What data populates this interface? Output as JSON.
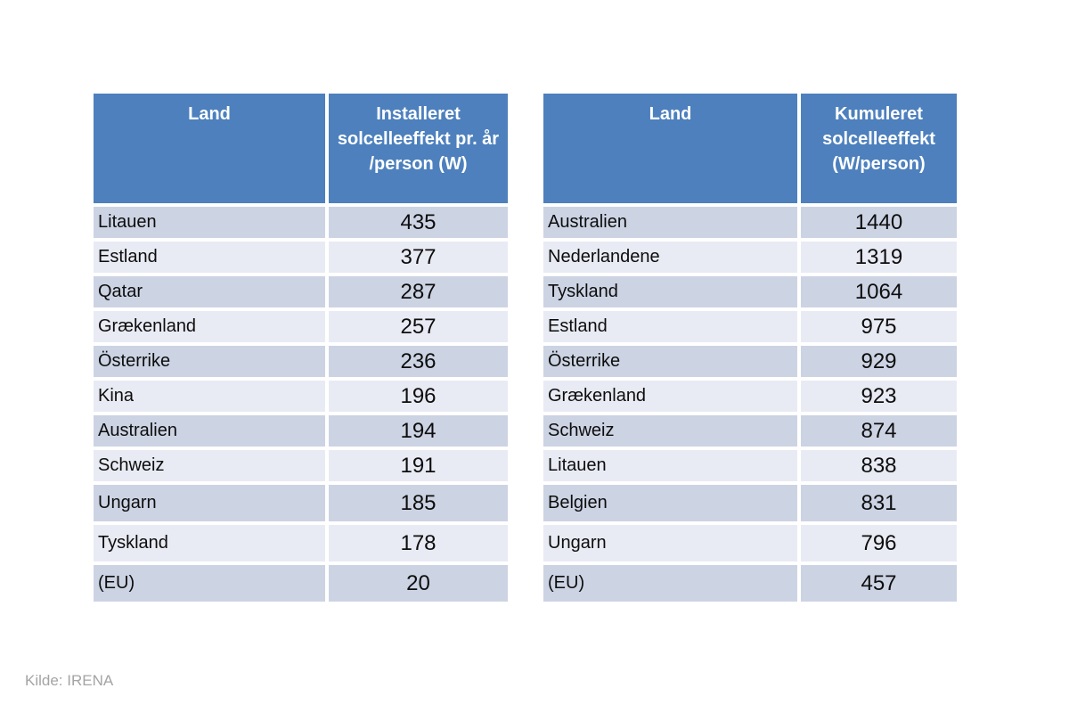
{
  "source_note": "Kilde: IRENA",
  "colors": {
    "header_bg": "#4d80bd",
    "header_text": "#ffffff",
    "row_dark": "#ccd3e3",
    "row_light": "#e9ebf4",
    "source_text": "#a4a4a4"
  },
  "tables": [
    {
      "name": "installeret-solcelleeffekt-pr-aar",
      "columns": [
        "Land",
        "Installeret solcelleeffekt pr. år /person (W)"
      ],
      "rows": [
        {
          "country": "Litauen",
          "value": "435"
        },
        {
          "country": "Estland",
          "value": "377"
        },
        {
          "country": "Qatar",
          "value": "287"
        },
        {
          "country": "Grækenland",
          "value": "257"
        },
        {
          "country": "Österrike",
          "value": "236"
        },
        {
          "country": "Kina",
          "value": "196"
        },
        {
          "country": "Australien",
          "value": "194"
        },
        {
          "country": "Schweiz",
          "value": "191"
        },
        {
          "country": "Ungarn",
          "value": "185"
        },
        {
          "country": "Tyskland",
          "value": "178"
        },
        {
          "country": "(EU)",
          "value": "20"
        }
      ]
    },
    {
      "name": "kumuleret-solcelleeffekt",
      "columns": [
        "Land",
        "Kumuleret solcelleeffekt (W/person)"
      ],
      "rows": [
        {
          "country": "Australien",
          "value": "1440"
        },
        {
          "country": "Nederlandene",
          "value": "1319"
        },
        {
          "country": "Tyskland",
          "value": "1064"
        },
        {
          "country": "Estland",
          "value": "975"
        },
        {
          "country": "Österrike",
          "value": "929"
        },
        {
          "country": "Grækenland",
          "value": "923"
        },
        {
          "country": "Schweiz",
          "value": "874"
        },
        {
          "country": "Litauen",
          "value": "838"
        },
        {
          "country": "Belgien",
          "value": "831"
        },
        {
          "country": "Ungarn",
          "value": "796"
        },
        {
          "country": "(EU)",
          "value": "457"
        }
      ]
    }
  ],
  "chart_data": [
    {
      "type": "table",
      "title": "Installeret solcelleeffekt pr. år /person (W)",
      "columns": [
        "Land",
        "Installeret solcelleeffekt pr. år /person (W)"
      ],
      "rows": [
        [
          "Litauen",
          435
        ],
        [
          "Estland",
          377
        ],
        [
          "Qatar",
          287
        ],
        [
          "Grækenland",
          257
        ],
        [
          "Österrike",
          236
        ],
        [
          "Kina",
          196
        ],
        [
          "Australien",
          194
        ],
        [
          "Schweiz",
          191
        ],
        [
          "Ungarn",
          185
        ],
        [
          "Tyskland",
          178
        ],
        [
          "(EU)",
          20
        ]
      ],
      "source": "Kilde: IRENA"
    },
    {
      "type": "table",
      "title": "Kumuleret solcelleeffekt (W/person)",
      "columns": [
        "Land",
        "Kumuleret solcelleeffekt (W/person)"
      ],
      "rows": [
        [
          "Australien",
          1440
        ],
        [
          "Nederlandene",
          1319
        ],
        [
          "Tyskland",
          1064
        ],
        [
          "Estland",
          975
        ],
        [
          "Österrike",
          929
        ],
        [
          "Grækenland",
          923
        ],
        [
          "Schweiz",
          874
        ],
        [
          "Litauen",
          838
        ],
        [
          "Belgien",
          831
        ],
        [
          "Ungarn",
          796
        ],
        [
          "(EU)",
          457
        ]
      ],
      "source": "Kilde: IRENA"
    }
  ]
}
